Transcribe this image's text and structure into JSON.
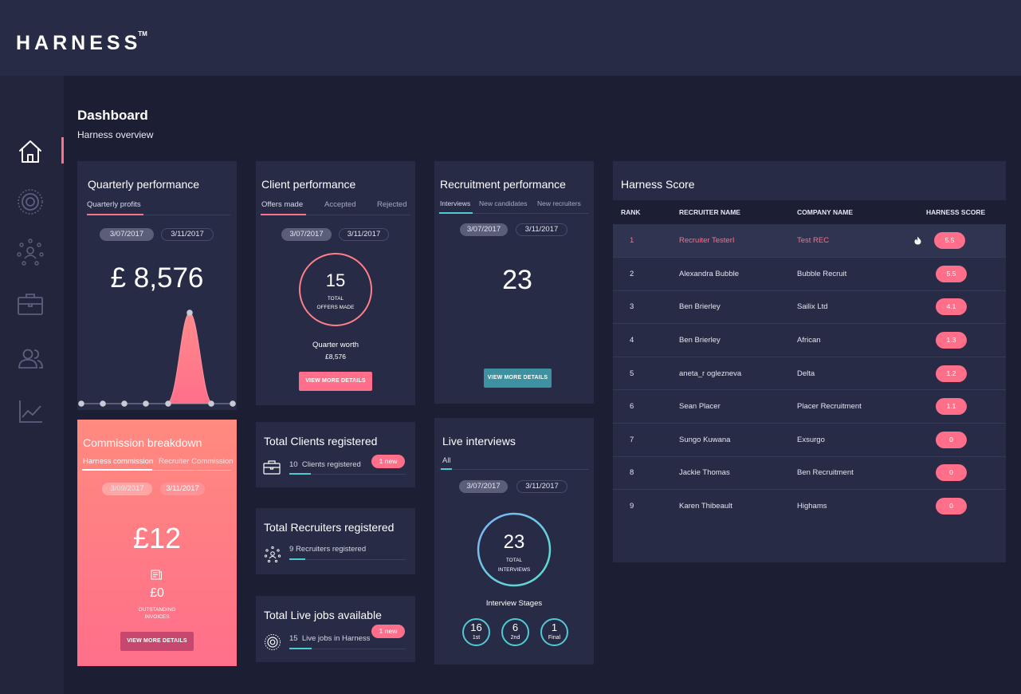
{
  "app": {
    "logo": "HARNESS",
    "trademark": "TM"
  },
  "page": {
    "title": "Dashboard",
    "subtitle": "Harness overview"
  },
  "colors": {
    "accent": "#ff6f8a",
    "teal": "#4ecbd2",
    "card": "#272b45",
    "background": "#1c1f33"
  },
  "sidebar": {
    "items": [
      {
        "icon": "home-icon",
        "active": true
      },
      {
        "icon": "target-icon",
        "active": false
      },
      {
        "icon": "network-icon",
        "active": false
      },
      {
        "icon": "briefcase-icon",
        "active": false
      },
      {
        "icon": "users-icon",
        "active": false
      },
      {
        "icon": "chart-line-icon",
        "active": false
      }
    ]
  },
  "quarterly": {
    "title": "Quarterly performance",
    "tab": "Quarterly profits",
    "date_from": "3/07/2017",
    "date_to": "3/11/2017",
    "value": "£ 8,576"
  },
  "commission": {
    "title": "Commission breakdown",
    "tabs": [
      "Harness commission",
      "Recruiter Commission"
    ],
    "date_from": "3/09/2017",
    "date_to": "3/11/2017",
    "value": "£12",
    "outstanding_value": "£0",
    "outstanding_label_1": "OUTSTANDING",
    "outstanding_label_2": "INVOICES",
    "button": "VIEW MORE DETAILS"
  },
  "client": {
    "title": "Client performance",
    "tabs": [
      "Offers made",
      "Accepted",
      "Rejected"
    ],
    "date_from": "3/07/2017",
    "date_to": "3/11/2017",
    "count": "15",
    "count_label_1": "TOTAL",
    "count_label_2": "OFFERS MADE",
    "worth_label": "Quarter worth",
    "worth_value": "£8,576",
    "button": "VIEW MORE DETAILS"
  },
  "clients_registered": {
    "title": "Total Clients registered",
    "count": "10",
    "label": "Clients registered",
    "badge": "1 new"
  },
  "recruiters_registered": {
    "title": "Total Recruiters registered",
    "count": "9",
    "label": "Recruiters registered"
  },
  "live_jobs": {
    "title": "Total Live jobs available",
    "count": "15",
    "label": "Live jobs in Harness",
    "badge": "1 new"
  },
  "recruitment": {
    "title": "Recruitment performance",
    "tabs": [
      "Interviews",
      "New candidates",
      "New recruiters"
    ],
    "date_from": "3/07/2017",
    "date_to": "3/11/2017",
    "value": "23",
    "button": "VIEW MORE DETAILS"
  },
  "interviews": {
    "title": "Live interviews",
    "tab": "All",
    "date_from": "3/07/2017",
    "date_to": "3/11/2017",
    "count": "23",
    "count_label_1": "TOTAL",
    "count_label_2": "INTERVIEWS",
    "stages_label": "Interview Stages",
    "stages": [
      {
        "value": "16",
        "label": "1st"
      },
      {
        "value": "6",
        "label": "2nd"
      },
      {
        "value": "1",
        "label": "Final"
      }
    ]
  },
  "score": {
    "title": "Harness Score",
    "columns": [
      "RANK",
      "RECRUITER NAME",
      "COMPANY NAME",
      "HARNESS SCORE"
    ],
    "rows": [
      {
        "rank": "1",
        "name": "Recruiter  TesterI",
        "company": "Test REC",
        "score": "5.5",
        "icon": "flame-icon"
      },
      {
        "rank": "2",
        "name": "Alexandra Bubble",
        "company": "Bubble Recruit",
        "score": "5.5"
      },
      {
        "rank": "3",
        "name": "Ben Brierley",
        "company": "Sailix Ltd",
        "score": "4.1"
      },
      {
        "rank": "4",
        "name": "Ben Brierley",
        "company": "African",
        "score": "1.3"
      },
      {
        "rank": "5",
        "name": "aneta_r oglezneva",
        "company": "Delta",
        "score": "1.2"
      },
      {
        "rank": "6",
        "name": "Sean Placer",
        "company": "Placer Recruitment",
        "score": "1.1"
      },
      {
        "rank": "7",
        "name": "Sungo Kuwana",
        "company": "Exsurgo",
        "score": "0"
      },
      {
        "rank": "8",
        "name": "Jackie Thomas",
        "company": "Ben Recruitment",
        "score": "0"
      },
      {
        "rank": "9",
        "name": "Karen Thibeault",
        "company": "Highams",
        "score": "0"
      }
    ]
  }
}
